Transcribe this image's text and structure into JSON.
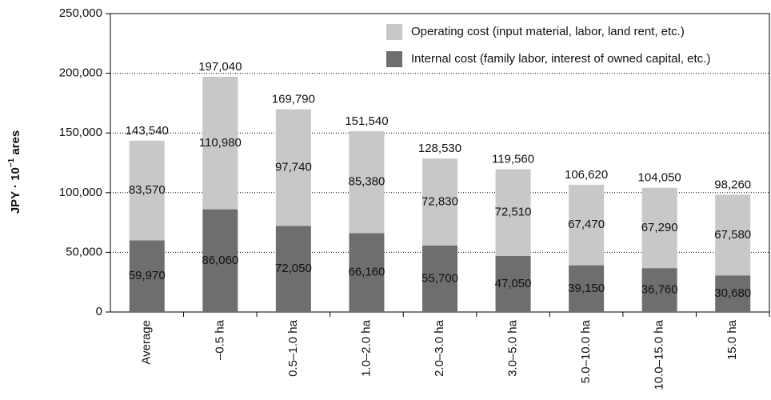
{
  "chart_data": {
    "type": "stacked-bar",
    "y_label": "JPY · 10",
    "y_label_sup": "−1",
    "y_label_end": " ares",
    "categories": [
      "Average",
      "–0.5 ha",
      "0.5–1.0 ha",
      "1.0–2.0 ha",
      "2.0–3.0 ha",
      "3.0–5.0 ha",
      "5.0–10.0 ha",
      "10.0–15.0 ha",
      "15.0 ha"
    ],
    "series": [
      {
        "name": "Internal cost (family labor, interest of owned capital, etc.)",
        "color": "#6e6e6e",
        "values": [
          59970,
          86060,
          72050,
          66160,
          55700,
          47050,
          39150,
          36760,
          30680
        ],
        "value_labels": [
          "59,970",
          "86,060",
          "72,050",
          "66,160",
          "55,700",
          "47,050",
          "39,150",
          "36,760",
          "30,680"
        ]
      },
      {
        "name": "Operating cost (input material, labor, land rent, etc.)",
        "color": "#c8c8c8",
        "values": [
          83570,
          110980,
          97740,
          85380,
          72830,
          72510,
          67470,
          67290,
          67580
        ],
        "value_labels": [
          "83,570",
          "110,980",
          "97,740",
          "85,380",
          "72,830",
          "72,510",
          "67,470",
          "67,290",
          "67,580"
        ]
      }
    ],
    "totals": {
      "values": [
        143540,
        197040,
        169790,
        151540,
        128530,
        119560,
        106620,
        104050,
        98260
      ],
      "value_labels": [
        "143,540",
        "197,040",
        "169,790",
        "151,540",
        "128,530",
        "119,560",
        "106,620",
        "104,050",
        "98,260"
      ]
    },
    "ylim": [
      0,
      250000
    ],
    "yticks": [
      0,
      {
        "value": 50000,
        "label": "50,000"
      },
      {
        "value": 100000,
        "label": "100,000"
      },
      {
        "value": 150000,
        "label": "150,000"
      },
      {
        "value": 200000,
        "label": "200,000"
      },
      {
        "value": 250000,
        "label": "250,000"
      }
    ],
    "grid": true,
    "legend": "top-right"
  }
}
